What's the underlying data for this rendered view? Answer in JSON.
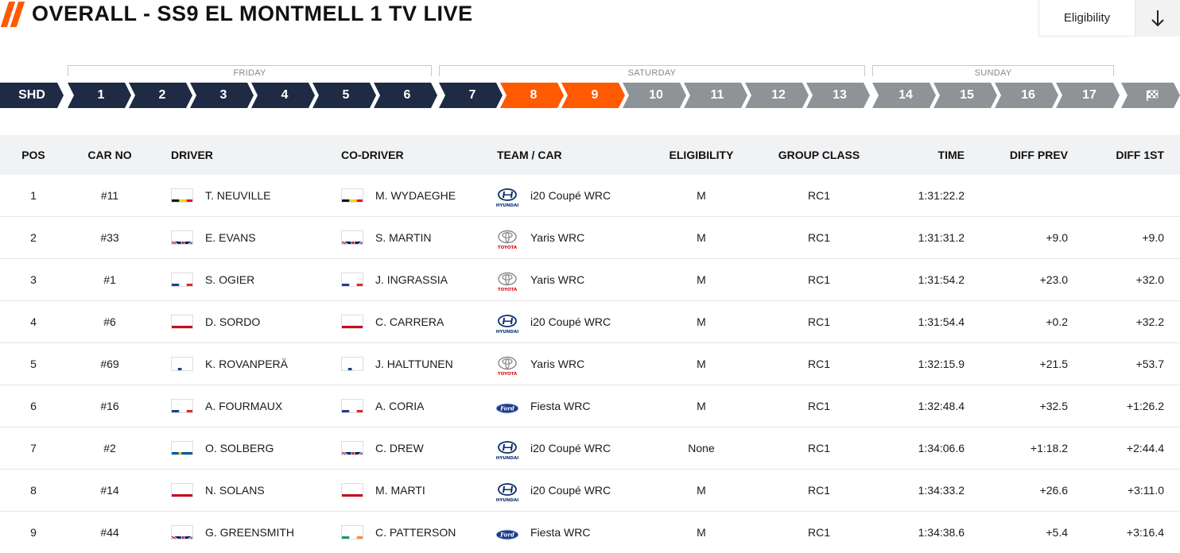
{
  "header": {
    "title": "OVERALL - SS9 EL MONTMELL 1 TV LIVE",
    "eligibility_label": "Eligibility",
    "accent_color": "#ff5a00"
  },
  "days": [
    {
      "label": "FRIDAY"
    },
    {
      "label": "SATURDAY"
    },
    {
      "label": "SUNDAY"
    }
  ],
  "stages": [
    {
      "label": "SHD",
      "state": "done"
    },
    {
      "label": "1",
      "state": "done"
    },
    {
      "label": "2",
      "state": "done"
    },
    {
      "label": "3",
      "state": "done"
    },
    {
      "label": "4",
      "state": "done"
    },
    {
      "label": "5",
      "state": "done"
    },
    {
      "label": "6",
      "state": "done"
    },
    {
      "label": "7",
      "state": "done"
    },
    {
      "label": "8",
      "state": "active"
    },
    {
      "label": "9",
      "state": "active"
    },
    {
      "label": "10",
      "state": "future"
    },
    {
      "label": "11",
      "state": "future"
    },
    {
      "label": "12",
      "state": "future"
    },
    {
      "label": "13",
      "state": "future"
    },
    {
      "label": "14",
      "state": "future"
    },
    {
      "label": "15",
      "state": "future"
    },
    {
      "label": "16",
      "state": "future"
    },
    {
      "label": "17",
      "state": "future"
    },
    {
      "label": "",
      "state": "future",
      "icon": "finish-flag-icon"
    }
  ],
  "columns": {
    "pos": "POS",
    "car_no": "CAR NO",
    "driver": "DRIVER",
    "co_driver": "CO-DRIVER",
    "team_car": "TEAM / CAR",
    "eligibility": "ELIGIBILITY",
    "group_class": "GROUP CLASS",
    "time": "TIME",
    "diff_prev": "DIFF PREV",
    "diff_1st": "DIFF 1ST"
  },
  "rows": [
    {
      "pos": "1",
      "car_no": "#11",
      "driver": "T. NEUVILLE",
      "driver_flag": "belgium",
      "co_driver": "M. WYDAEGHE",
      "co_driver_flag": "belgium",
      "brand": "hyundai",
      "car": "i20 Coupé WRC",
      "eligibility": "M",
      "group_class": "RC1",
      "time": "1:31:22.2",
      "diff_prev": "",
      "diff_1st": ""
    },
    {
      "pos": "2",
      "car_no": "#33",
      "driver": "E. EVANS",
      "driver_flag": "uk",
      "co_driver": "S. MARTIN",
      "co_driver_flag": "uk",
      "brand": "toyota",
      "car": "Yaris WRC",
      "eligibility": "M",
      "group_class": "RC1",
      "time": "1:31:31.2",
      "diff_prev": "+9.0",
      "diff_1st": "+9.0"
    },
    {
      "pos": "3",
      "car_no": "#1",
      "driver": "S. OGIER",
      "driver_flag": "france",
      "co_driver": "J. INGRASSIA",
      "co_driver_flag": "france",
      "brand": "toyota",
      "car": "Yaris WRC",
      "eligibility": "M",
      "group_class": "RC1",
      "time": "1:31:54.2",
      "diff_prev": "+23.0",
      "diff_1st": "+32.0"
    },
    {
      "pos": "4",
      "car_no": "#6",
      "driver": "D. SORDO",
      "driver_flag": "spain",
      "co_driver": "C. CARRERA",
      "co_driver_flag": "spain",
      "brand": "hyundai",
      "car": "i20 Coupé WRC",
      "eligibility": "M",
      "group_class": "RC1",
      "time": "1:31:54.4",
      "diff_prev": "+0.2",
      "diff_1st": "+32.2"
    },
    {
      "pos": "5",
      "car_no": "#69",
      "driver": "K. ROVANPERÄ",
      "driver_flag": "finland",
      "co_driver": "J. HALTTUNEN",
      "co_driver_flag": "finland",
      "brand": "toyota",
      "car": "Yaris WRC",
      "eligibility": "M",
      "group_class": "RC1",
      "time": "1:32:15.9",
      "diff_prev": "+21.5",
      "diff_1st": "+53.7"
    },
    {
      "pos": "6",
      "car_no": "#16",
      "driver": "A. FOURMAUX",
      "driver_flag": "france",
      "co_driver": "A. CORIA",
      "co_driver_flag": "france",
      "brand": "ford",
      "car": "Fiesta WRC",
      "eligibility": "M",
      "group_class": "RC1",
      "time": "1:32:48.4",
      "diff_prev": "+32.5",
      "diff_1st": "+1:26.2"
    },
    {
      "pos": "7",
      "car_no": "#2",
      "driver": "O. SOLBERG",
      "driver_flag": "sweden",
      "co_driver": "C. DREW",
      "co_driver_flag": "uk",
      "brand": "hyundai",
      "car": "i20 Coupé WRC",
      "eligibility": "None",
      "group_class": "RC1",
      "time": "1:34:06.6",
      "diff_prev": "+1:18.2",
      "diff_1st": "+2:44.4"
    },
    {
      "pos": "8",
      "car_no": "#14",
      "driver": "N. SOLANS",
      "driver_flag": "spain",
      "co_driver": "M. MARTI",
      "co_driver_flag": "spain",
      "brand": "hyundai",
      "car": "i20 Coupé WRC",
      "eligibility": "M",
      "group_class": "RC1",
      "time": "1:34:33.2",
      "diff_prev": "+26.6",
      "diff_1st": "+3:11.0"
    },
    {
      "pos": "9",
      "car_no": "#44",
      "driver": "G. GREENSMITH",
      "driver_flag": "uk",
      "co_driver": "C. PATTERSON",
      "co_driver_flag": "ireland",
      "brand": "ford",
      "car": "Fiesta WRC",
      "eligibility": "M",
      "group_class": "RC1",
      "time": "1:34:38.6",
      "diff_prev": "+5.4",
      "diff_1st": "+3:16.4"
    }
  ]
}
